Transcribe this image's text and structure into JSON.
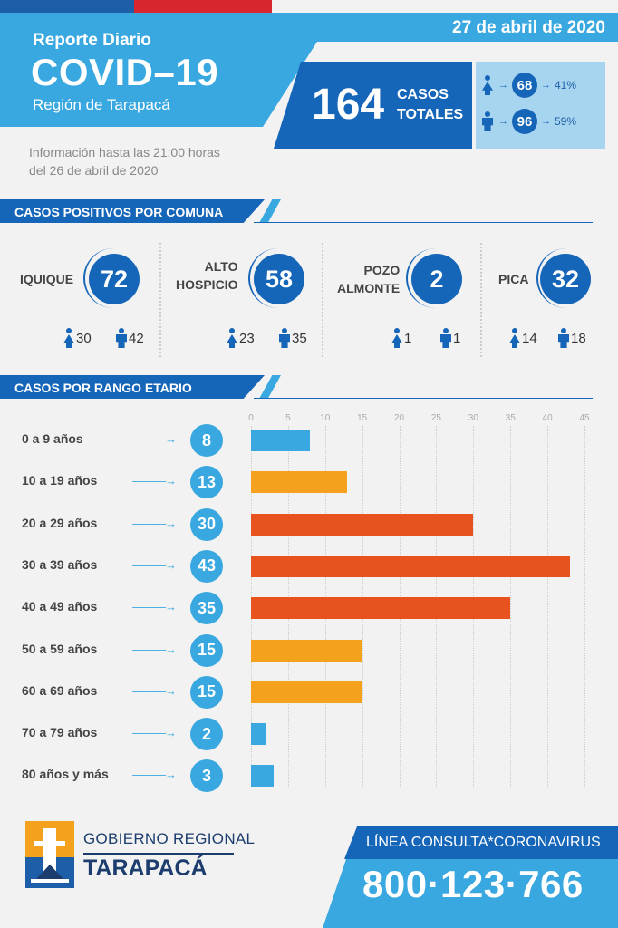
{
  "header": {
    "date": "27 de abril de 2020",
    "subtitle": "Reporte Diario",
    "title": "COVID–19",
    "region": "Región de Tarapacá",
    "info_line1": "Información hasta las 21:00 horas",
    "info_line2": "del 26 de abril de 2020"
  },
  "totals": {
    "value": "164",
    "label_line1": "CASOS",
    "label_line2": "TOTALES",
    "female_value": "68",
    "female_pct": "41%",
    "male_value": "96",
    "male_pct": "59%",
    "arrow": "→"
  },
  "comunas_section": {
    "title": "CASOS POSITIVOS POR COMUNA"
  },
  "comunas": [
    {
      "name_line1": "IQUIQUE",
      "name_line2": "",
      "total": "72",
      "female": "30",
      "male": "42"
    },
    {
      "name_line1": "ALTO",
      "name_line2": "HOSPICIO",
      "total": "58",
      "female": "23",
      "male": "35"
    },
    {
      "name_line1": "POZO",
      "name_line2": "ALMONTE",
      "total": "2",
      "female": "1",
      "male": "1"
    },
    {
      "name_line1": "PICA",
      "name_line2": "",
      "total": "32",
      "female": "14",
      "male": "18"
    }
  ],
  "age_section": {
    "title": "CASOS POR RANGO ETARIO"
  },
  "chart_data": {
    "type": "bar",
    "orientation": "horizontal",
    "categories": [
      "0 a 9 años",
      "10 a 19 años",
      "20 a 29 años",
      "30 a 39 años",
      "40 a 49 años",
      "50 a 59 años",
      "60 a 69 años",
      "70 a 79 años",
      "80 años y más"
    ],
    "values": [
      8,
      13,
      30,
      43,
      35,
      15,
      15,
      2,
      3
    ],
    "value_labels": [
      "8",
      "13",
      "30",
      "43",
      "35",
      "15",
      "15",
      "2",
      "3"
    ],
    "xlim": [
      0,
      45
    ],
    "ticks": [
      "0",
      "5",
      "10",
      "15",
      "20",
      "25",
      "30",
      "35",
      "40",
      "45"
    ],
    "grid": true,
    "colors": {
      "low": "#3aa8e0",
      "mid": "#f4a21e",
      "high": "#e8521f"
    }
  },
  "footer": {
    "org_line1": "GOBIERNO REGIONAL",
    "org_line2": "TARAPACÁ",
    "hotline_label": "LÍNEA CONSULTA*CORONAVIRUS",
    "hotline_number": "800·123·766"
  }
}
